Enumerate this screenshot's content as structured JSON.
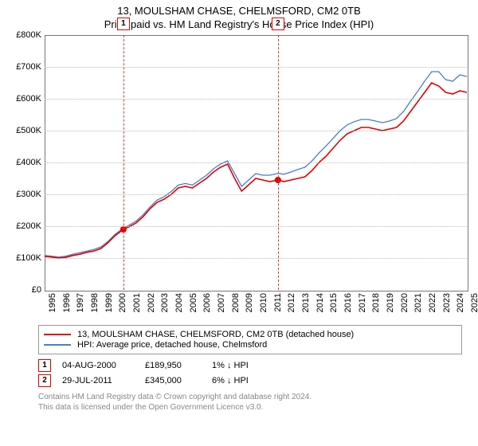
{
  "title_main": "13, MOULSHAM CHASE, CHELMSFORD, CM2 0TB",
  "title_sub": "Price paid vs. HM Land Registry's House Price Index (HPI)",
  "chart": {
    "type": "line",
    "x_min": 1995,
    "x_max": 2025,
    "x_ticks": [
      1995,
      1996,
      1997,
      1998,
      1999,
      2000,
      2001,
      2002,
      2003,
      2004,
      2005,
      2006,
      2007,
      2008,
      2009,
      2010,
      2011,
      2012,
      2013,
      2014,
      2015,
      2016,
      2017,
      2018,
      2019,
      2020,
      2021,
      2022,
      2023,
      2024,
      2025
    ],
    "y_min": 0,
    "y_max": 800,
    "y_unit": "K",
    "y_currency": "£",
    "y_ticks": [
      0,
      100,
      200,
      300,
      400,
      500,
      600,
      700,
      800
    ],
    "background_color": "#ffffff",
    "grid_color": "#bbbbbb",
    "axis_color": "#777777",
    "tick_fontsize": 11,
    "series": [
      {
        "name": "price_paid",
        "color": "#e00000",
        "width": 1.6,
        "legend": "13, MOULSHAM CHASE, CHELMSFORD, CM2 0TB (detached house)",
        "points": [
          [
            1995.0,
            105
          ],
          [
            1995.5,
            103
          ],
          [
            1996.0,
            100
          ],
          [
            1996.5,
            102
          ],
          [
            1997.0,
            108
          ],
          [
            1997.5,
            112
          ],
          [
            1998.0,
            118
          ],
          [
            1998.5,
            122
          ],
          [
            1999.0,
            130
          ],
          [
            1999.5,
            148
          ],
          [
            2000.0,
            170
          ],
          [
            2000.6,
            190
          ],
          [
            2001.0,
            198
          ],
          [
            2001.5,
            210
          ],
          [
            2002.0,
            230
          ],
          [
            2002.5,
            255
          ],
          [
            2003.0,
            275
          ],
          [
            2003.5,
            285
          ],
          [
            2004.0,
            300
          ],
          [
            2004.5,
            320
          ],
          [
            2005.0,
            325
          ],
          [
            2005.5,
            320
          ],
          [
            2006.0,
            335
          ],
          [
            2006.5,
            350
          ],
          [
            2007.0,
            370
          ],
          [
            2007.5,
            385
          ],
          [
            2008.0,
            395
          ],
          [
            2008.5,
            350
          ],
          [
            2009.0,
            310
          ],
          [
            2009.5,
            330
          ],
          [
            2010.0,
            350
          ],
          [
            2010.5,
            345
          ],
          [
            2011.0,
            340
          ],
          [
            2011.6,
            345
          ],
          [
            2012.0,
            340
          ],
          [
            2012.5,
            345
          ],
          [
            2013.0,
            350
          ],
          [
            2013.5,
            355
          ],
          [
            2014.0,
            375
          ],
          [
            2014.5,
            400
          ],
          [
            2015.0,
            420
          ],
          [
            2015.5,
            445
          ],
          [
            2016.0,
            470
          ],
          [
            2016.5,
            490
          ],
          [
            2017.0,
            500
          ],
          [
            2017.5,
            510
          ],
          [
            2018.0,
            510
          ],
          [
            2018.5,
            505
          ],
          [
            2019.0,
            500
          ],
          [
            2019.5,
            505
          ],
          [
            2020.0,
            510
          ],
          [
            2020.5,
            530
          ],
          [
            2021.0,
            560
          ],
          [
            2021.5,
            590
          ],
          [
            2022.0,
            620
          ],
          [
            2022.5,
            650
          ],
          [
            2023.0,
            640
          ],
          [
            2023.5,
            620
          ],
          [
            2024.0,
            615
          ],
          [
            2024.5,
            625
          ],
          [
            2025.0,
            620
          ]
        ]
      },
      {
        "name": "hpi",
        "color": "#4a7ec8",
        "width": 1.3,
        "legend": "HPI: Average price, detached house, Chelmsford",
        "points": [
          [
            1995.0,
            108
          ],
          [
            1995.5,
            106
          ],
          [
            1996.0,
            103
          ],
          [
            1996.5,
            106
          ],
          [
            1997.0,
            112
          ],
          [
            1997.5,
            117
          ],
          [
            1998.0,
            122
          ],
          [
            1998.5,
            127
          ],
          [
            1999.0,
            135
          ],
          [
            1999.5,
            152
          ],
          [
            2000.0,
            174
          ],
          [
            2000.6,
            194
          ],
          [
            2001.0,
            203
          ],
          [
            2001.5,
            216
          ],
          [
            2002.0,
            236
          ],
          [
            2002.5,
            261
          ],
          [
            2003.0,
            282
          ],
          [
            2003.5,
            293
          ],
          [
            2004.0,
            309
          ],
          [
            2004.5,
            329
          ],
          [
            2005.0,
            334
          ],
          [
            2005.5,
            329
          ],
          [
            2006.0,
            344
          ],
          [
            2006.5,
            360
          ],
          [
            2007.0,
            380
          ],
          [
            2007.5,
            395
          ],
          [
            2008.0,
            405
          ],
          [
            2008.5,
            365
          ],
          [
            2009.0,
            325
          ],
          [
            2009.5,
            345
          ],
          [
            2010.0,
            365
          ],
          [
            2010.5,
            360
          ],
          [
            2011.0,
            360
          ],
          [
            2011.6,
            366
          ],
          [
            2012.0,
            363
          ],
          [
            2012.5,
            370
          ],
          [
            2013.0,
            378
          ],
          [
            2013.5,
            385
          ],
          [
            2014.0,
            405
          ],
          [
            2014.5,
            430
          ],
          [
            2015.0,
            452
          ],
          [
            2015.5,
            476
          ],
          [
            2016.0,
            500
          ],
          [
            2016.5,
            518
          ],
          [
            2017.0,
            528
          ],
          [
            2017.5,
            535
          ],
          [
            2018.0,
            535
          ],
          [
            2018.5,
            530
          ],
          [
            2019.0,
            525
          ],
          [
            2019.5,
            530
          ],
          [
            2020.0,
            538
          ],
          [
            2020.5,
            560
          ],
          [
            2021.0,
            592
          ],
          [
            2021.5,
            623
          ],
          [
            2022.0,
            655
          ],
          [
            2022.5,
            685
          ],
          [
            2023.0,
            685
          ],
          [
            2023.5,
            660
          ],
          [
            2024.0,
            655
          ],
          [
            2024.5,
            675
          ],
          [
            2025.0,
            670
          ]
        ]
      }
    ],
    "event_lines": [
      {
        "n": "1",
        "x": 2000.6,
        "y": 190
      },
      {
        "n": "2",
        "x": 2011.58,
        "y": 345
      }
    ],
    "event_marker_top": -22
  },
  "legend_items": [
    "13, MOULSHAM CHASE, CHELMSFORD, CM2 0TB (detached house)",
    "HPI: Average price, detached house, Chelmsford"
  ],
  "events": [
    {
      "n": "1",
      "date": "04-AUG-2000",
      "price": "£189,950",
      "delta": "1% ↓ HPI"
    },
    {
      "n": "2",
      "date": "29-JUL-2011",
      "price": "£345,000",
      "delta": "6% ↓ HPI"
    }
  ],
  "footer_line1": "Contains HM Land Registry data © Crown copyright and database right 2024.",
  "footer_line2": "This data is licensed under the Open Government Licence v3.0."
}
